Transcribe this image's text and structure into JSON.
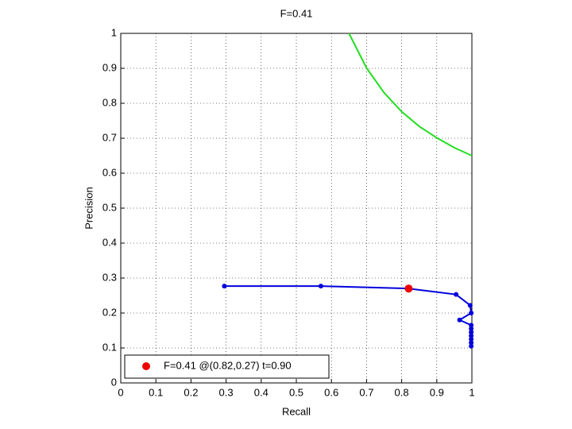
{
  "chart_data": {
    "type": "line",
    "title": "F=0.41",
    "xlabel": "Recall",
    "ylabel": "Precision",
    "xlim": [
      0,
      1
    ],
    "ylim": [
      0,
      1
    ],
    "xticks": [
      0,
      0.1,
      0.2,
      0.3,
      0.4,
      0.5,
      0.6,
      0.7,
      0.8,
      0.9,
      1
    ],
    "yticks": [
      0,
      0.1,
      0.2,
      0.3,
      0.4,
      0.5,
      0.6,
      0.7,
      0.8,
      0.9,
      1
    ],
    "grid": true,
    "legend": "lower left",
    "series": [
      {
        "color": "#22dd22",
        "marker": false,
        "x": [
          0.65,
          0.7,
          0.75,
          0.8,
          0.85,
          0.9,
          0.95,
          1.0
        ],
        "values": [
          1.0,
          0.901,
          0.83,
          0.776,
          0.734,
          0.701,
          0.673,
          0.65
        ]
      },
      {
        "color": "#0000dd",
        "marker": true,
        "x": [
          0.295,
          0.57,
          0.82,
          0.955,
          0.995,
          0.998,
          0.965,
          0.998,
          0.998,
          0.998,
          0.998,
          0.998,
          0.998,
          0.998
        ],
        "values": [
          0.277,
          0.277,
          0.27,
          0.253,
          0.222,
          0.2,
          0.18,
          0.165,
          0.155,
          0.145,
          0.135,
          0.125,
          0.115,
          0.105
        ]
      },
      {
        "name": "F=0.41 @(0.82,0.27) t=0.90",
        "color": "#ee0000",
        "marker": true,
        "x": [
          0.82
        ],
        "values": [
          0.27
        ]
      }
    ]
  }
}
